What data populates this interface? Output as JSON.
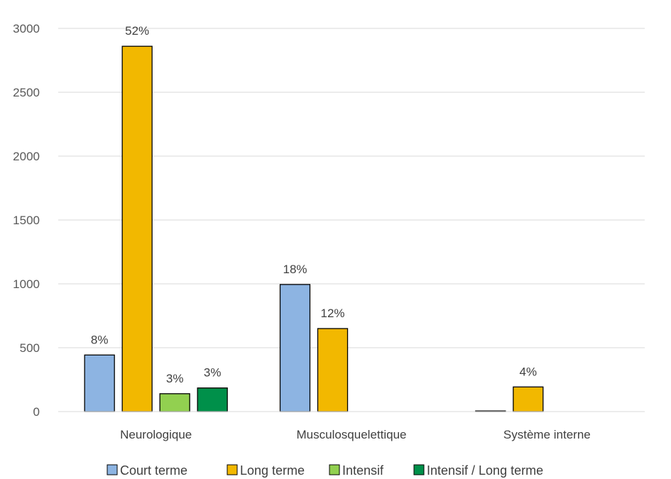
{
  "chart_data": {
    "type": "bar",
    "title": "",
    "xlabel": "",
    "ylabel": "",
    "ylim": [
      0,
      3000
    ],
    "yticks": [
      0,
      500,
      1000,
      1500,
      2000,
      2500,
      3000
    ],
    "grid": true,
    "legend_position": "bottom",
    "categories": [
      "Neurologique",
      "Musculosquelettique",
      "Système interne"
    ],
    "series": [
      {
        "name": "Court terme",
        "color": "#8DB4E2",
        "values": [
          443,
          995,
          5
        ],
        "labels": [
          "8%",
          "18%",
          null
        ]
      },
      {
        "name": "Long terme",
        "color": "#F2B800",
        "values": [
          2860,
          650,
          193
        ],
        "labels": [
          "52%",
          "12%",
          "4%"
        ]
      },
      {
        "name": "Intensif",
        "color": "#92D050",
        "values": [
          140,
          null,
          null
        ],
        "labels": [
          "3%",
          null,
          null
        ]
      },
      {
        "name": "Intensif / Long terme",
        "color": "#00904A",
        "values": [
          185,
          null,
          null
        ],
        "labels": [
          "3%",
          null,
          null
        ]
      }
    ]
  }
}
